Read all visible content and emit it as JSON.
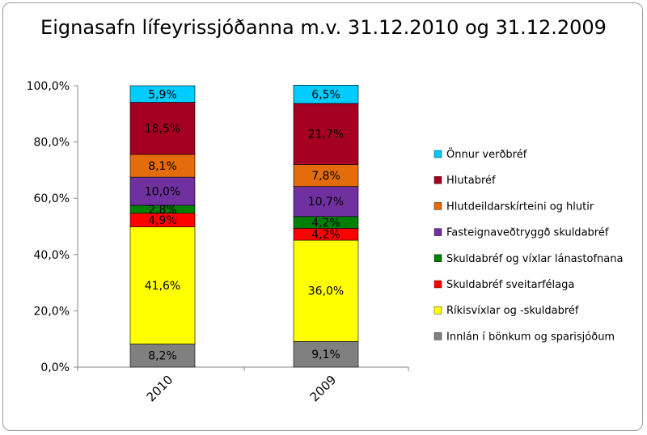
{
  "chart_data": {
    "type": "bar",
    "stacked": true,
    "percent": true,
    "title": "Eignasafn lífeyrissjóðanna m.v. 31.12.2010 og 31.12.2009",
    "xlabel": "",
    "ylabel": "",
    "ylim": [
      0,
      100
    ],
    "yticks": [
      "0,0%",
      "20,0%",
      "40,0%",
      "60,0%",
      "80,0%",
      "100,0%"
    ],
    "categories": [
      "2010",
      "2009"
    ],
    "legend_position": "right",
    "series": [
      {
        "name": "Innlán í bönkum og sparisjóðum",
        "color": "#808080",
        "values": [
          8.2,
          9.1
        ],
        "labels": [
          "8,2%",
          "9,1%"
        ]
      },
      {
        "name": "Ríkisvíxlar og -skuldabréf",
        "color": "#ffff00",
        "values": [
          41.6,
          36.0
        ],
        "labels": [
          "41,6%",
          "36,0%"
        ]
      },
      {
        "name": "Skuldabréf sveitarfélaga",
        "color": "#ff0000",
        "values": [
          4.9,
          4.2
        ],
        "labels": [
          "4,9%",
          "4,2%"
        ]
      },
      {
        "name": "Skuldabréf og víxlar lánastofnana",
        "color": "#008000",
        "values": [
          2.8,
          4.2
        ],
        "labels": [
          "2,8%",
          "4,2%"
        ]
      },
      {
        "name": "Fasteignaveðtryggð skuldabréf",
        "color": "#7030a0",
        "values": [
          10.0,
          10.7
        ],
        "labels": [
          "10,0%",
          "10,7%"
        ]
      },
      {
        "name": "Hlutdeildarskírteini og hlutir",
        "color": "#e46c0a",
        "values": [
          8.1,
          7.8
        ],
        "labels": [
          "8,1%",
          "7,8%"
        ]
      },
      {
        "name": "Hlutabréf",
        "color": "#a50021",
        "values": [
          18.5,
          21.7
        ],
        "labels": [
          "18,5%",
          "21,7%"
        ]
      },
      {
        "name": "Önnur verðbréf",
        "color": "#00ccff",
        "values": [
          5.9,
          6.5
        ],
        "labels": [
          "5,9%",
          "6,5%"
        ]
      }
    ]
  }
}
